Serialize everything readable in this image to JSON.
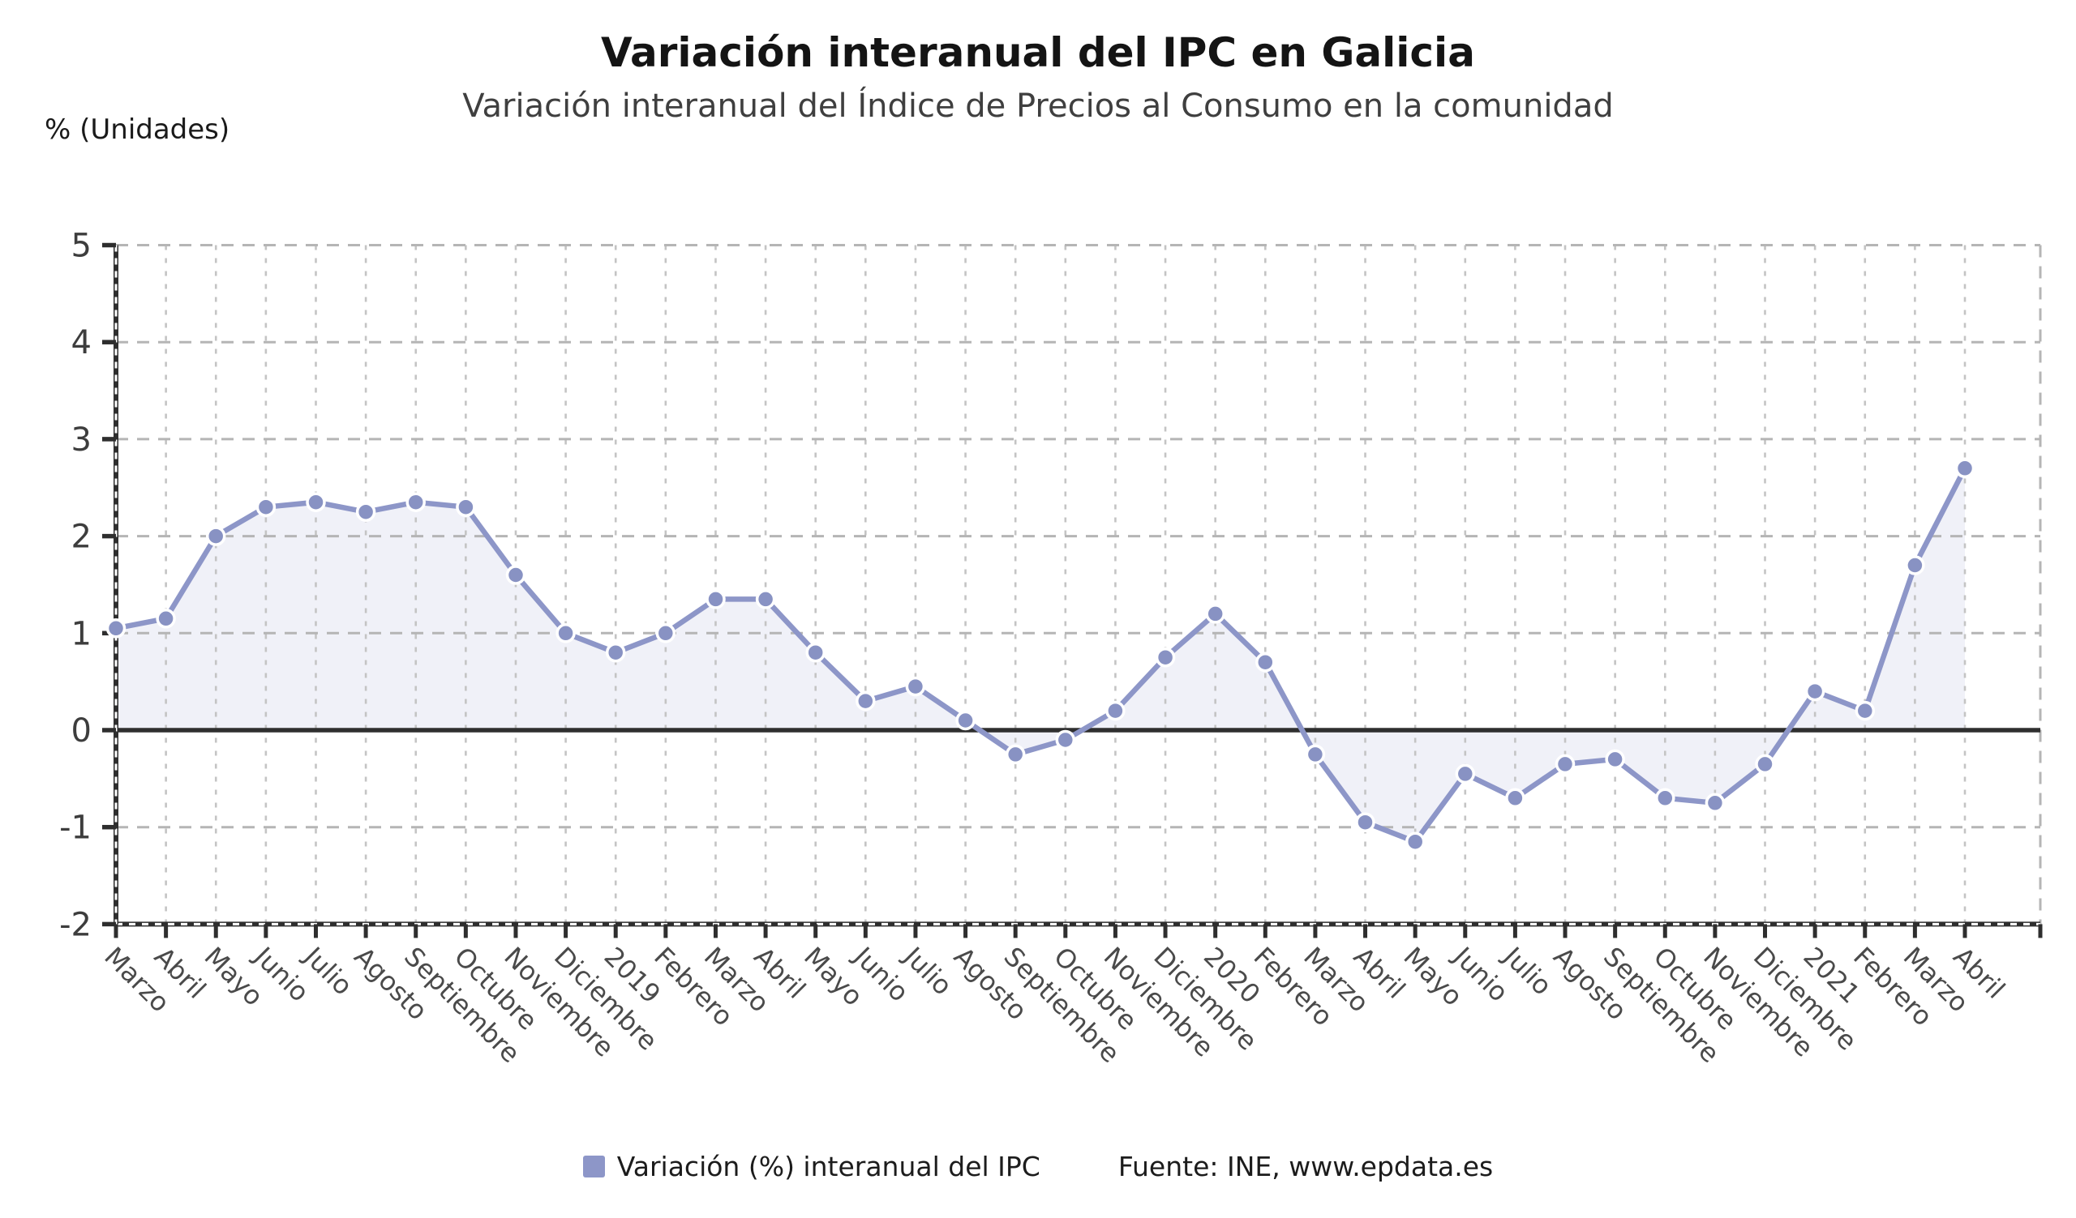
{
  "source_label": "Fuente: INE, www.epdata.es",
  "chart_data": {
    "type": "line",
    "title": "Variación interanual del IPC en Galicia",
    "subtitle": "Variación interanual del Índice de Precios al Consumo en la comunidad",
    "ylabel": "% (Unidades)",
    "xlabel": "",
    "ylim": [
      -2,
      5
    ],
    "yticks": [
      5,
      4,
      3,
      2,
      1,
      0,
      -1,
      -2
    ],
    "grid": true,
    "legend_position": "bottom",
    "zero_baseline": true,
    "categories": [
      "Marzo",
      "Abril",
      "Mayo",
      "Junio",
      "Julio",
      "Agosto",
      "Septiembre",
      "Octubre",
      "Noviembre",
      "Diciembre",
      "2019",
      "Febrero",
      "Marzo",
      "Abril",
      "Mayo",
      "Junio",
      "Julio",
      "Agosto",
      "Septiembre",
      "Octubre",
      "Noviembre",
      "Diciembre",
      "2020",
      "Febrero",
      "Marzo",
      "Abril",
      "Mayo",
      "Junio",
      "Julio",
      "Agosto",
      "Septiembre",
      "Octubre",
      "Noviembre",
      "Diciembre",
      "2021",
      "Febrero",
      "Marzo",
      "Abril"
    ],
    "series": [
      {
        "name": "Variación (%) interanual del IPC",
        "values": [
          1.05,
          1.15,
          2.0,
          2.3,
          2.35,
          2.25,
          2.35,
          2.3,
          1.6,
          1.0,
          0.8,
          1.0,
          1.35,
          1.35,
          0.8,
          0.3,
          0.45,
          0.1,
          -0.25,
          -0.1,
          0.2,
          0.75,
          1.2,
          0.7,
          -0.25,
          -0.95,
          -1.15,
          -0.45,
          -0.7,
          -0.35,
          -0.3,
          -0.7,
          -0.75,
          -0.35,
          0.4,
          0.2,
          1.7,
          2.7
        ]
      }
    ],
    "colors": {
      "line": "#8d96c8",
      "marker": "#8892c3",
      "marker_halo": "#ffffff",
      "area_fill": "rgba(141,150,200,0.13)",
      "zero_line": "#2f2f2f",
      "axis": "#2e2e2e",
      "grid_h": "#b5b5b5",
      "grid_v": "#c4c4c4",
      "tick_label": "#3d3d3d",
      "x_label": "#4a4a4a"
    }
  }
}
